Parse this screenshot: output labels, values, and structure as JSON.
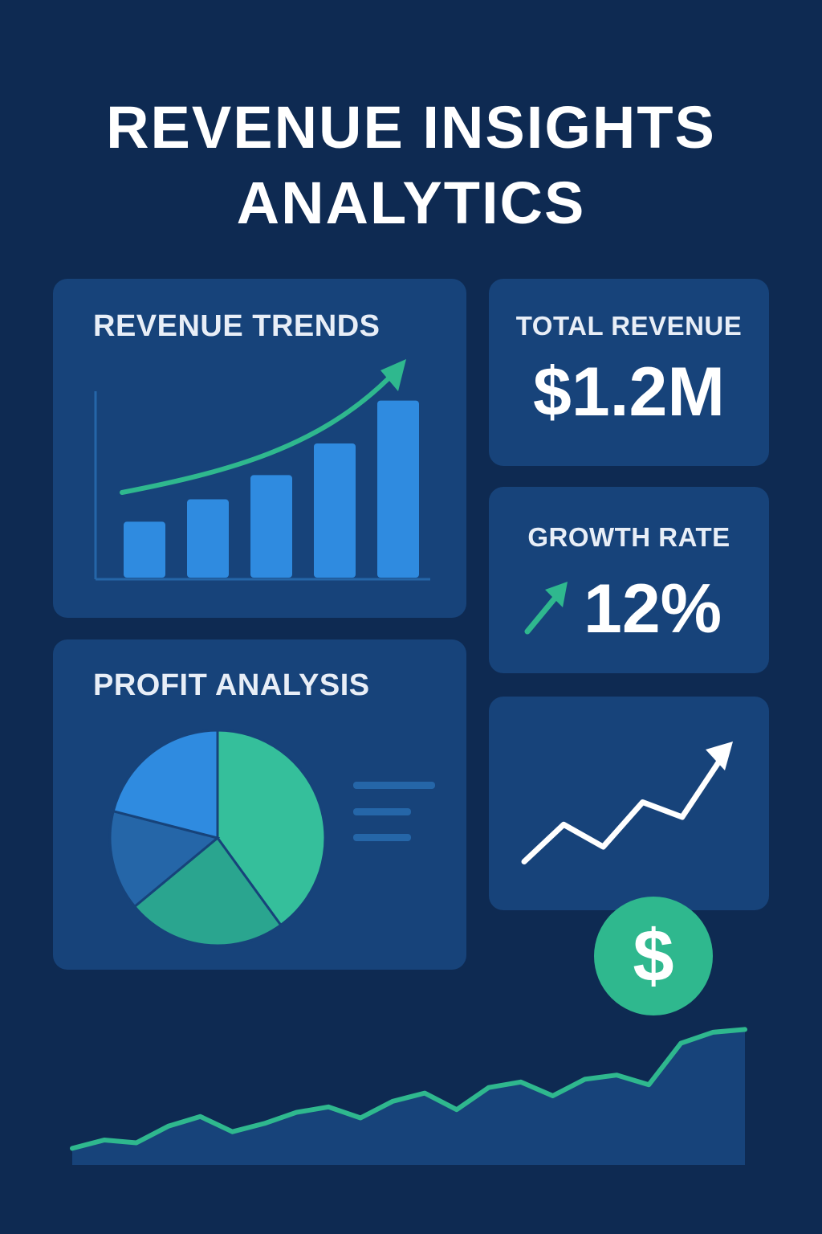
{
  "header": {
    "title_line1": "REVENUE INSIGHTS",
    "title_line2": "ANALYTICS"
  },
  "revenue_trends": {
    "title": "REVENUE TRENDS"
  },
  "total_revenue": {
    "title": "TOTAL REVENUE",
    "value": "$1.2M"
  },
  "growth_rate": {
    "title": "GROWTH RATE",
    "value": "12%",
    "icon": "arrow-up-right-icon"
  },
  "profit_analysis": {
    "title": "PROFIT ANALYSIS"
  },
  "dollar_badge": {
    "symbol": "$",
    "icon": "dollar-icon"
  },
  "colors": {
    "background": "#0e2a52",
    "card": "#17437a",
    "bar": "#2f8be0",
    "accent_green": "#2fb88e",
    "pie_blue": "#2f8be0",
    "pie_dark_blue": "#2566a8",
    "pie_teal": "#2aa58f",
    "pie_green": "#35bf9b"
  },
  "chart_data": [
    {
      "type": "bar",
      "categories": [
        "",
        "",
        "",
        "",
        ""
      ],
      "values": [
        30,
        42,
        55,
        72,
        95
      ],
      "title": "REVENUE TRENDS",
      "xlabel": "",
      "ylabel": "",
      "ylim": [
        0,
        100
      ],
      "trend_arrow": "up"
    },
    {
      "type": "pie",
      "values": [
        40,
        24,
        15,
        21
      ],
      "title": "PROFIT ANALYSIS"
    },
    {
      "type": "line",
      "values": [
        10,
        35,
        20,
        50,
        40,
        80
      ],
      "ylim": [
        0,
        100
      ],
      "trend_arrow": "up"
    },
    {
      "type": "area",
      "values": [
        12,
        18,
        16,
        28,
        35,
        24,
        30,
        38,
        42,
        34,
        46,
        52,
        40,
        56,
        60,
        50,
        62,
        65,
        58,
        88,
        96,
        98
      ],
      "ylim": [
        0,
        100
      ]
    }
  ]
}
